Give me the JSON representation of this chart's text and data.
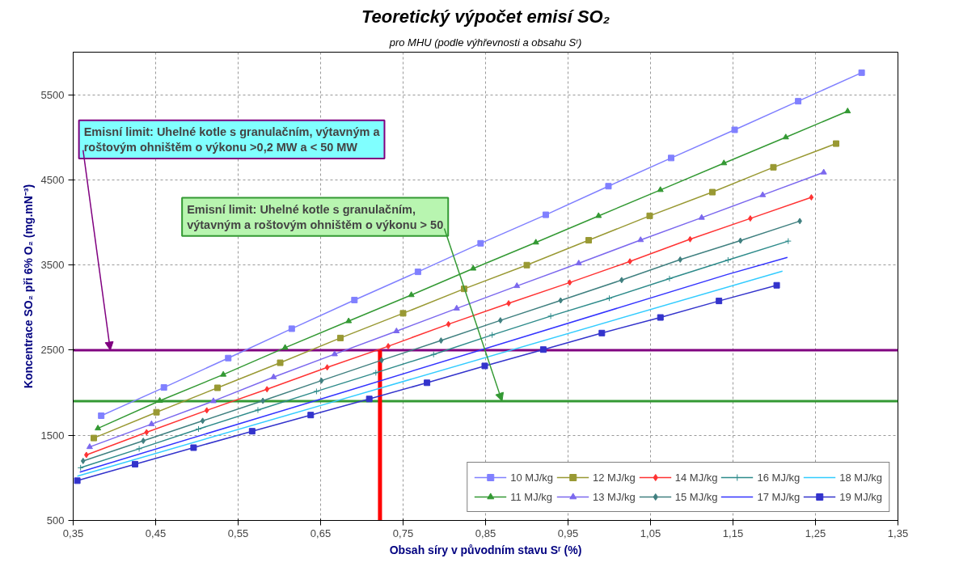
{
  "chart_data": {
    "type": "line",
    "title": "Teoretický výpočet emisí SO₂",
    "subtitle": "pro MHU (podle výhřevnosti a obsahu Sʳ)",
    "xlabel": "Obsah síry v původním stavu Sʳ (%)",
    "ylabel": "Koncentrace SO₂ při 6% O₂ (mg.mN⁻³)",
    "xlim": [
      0.35,
      1.35
    ],
    "ylim": [
      500,
      6000
    ],
    "xticks": [
      {
        "value": 0.35,
        "label": "0,35"
      },
      {
        "value": 0.45,
        "label": "0,45"
      },
      {
        "value": 0.55,
        "label": "0,55"
      },
      {
        "value": 0.65,
        "label": "0,65"
      },
      {
        "value": 0.75,
        "label": "0,75"
      },
      {
        "value": 0.85,
        "label": "0,85"
      },
      {
        "value": 0.95,
        "label": "0,95"
      },
      {
        "value": 1.05,
        "label": "1,05"
      },
      {
        "value": 1.15,
        "label": "1,15"
      },
      {
        "value": 1.25,
        "label": "1,25"
      },
      {
        "value": 1.35,
        "label": "1,35"
      }
    ],
    "yticks": [
      500,
      1500,
      2500,
      3500,
      4500,
      5500
    ],
    "grid": true,
    "legend": "bottom right",
    "line_style": "solid",
    "series": [
      {
        "name": "10 MJ/kg",
        "color": "#8080ff",
        "marker": "square",
        "x": [
          0.384,
          0.46,
          0.538,
          0.615,
          0.691,
          0.768,
          0.844,
          0.923,
          0.999,
          1.075,
          1.152,
          1.229,
          1.306
        ],
        "values": [
          1730,
          2062,
          2407,
          2752,
          3089,
          3420,
          3755,
          4090,
          4426,
          4757,
          5088,
          5424,
          5759
        ]
      },
      {
        "name": "11 MJ/kg",
        "color": "#339933",
        "marker": "triangle",
        "x": [
          0.38,
          0.455,
          0.532,
          0.607,
          0.684,
          0.76,
          0.835,
          0.911,
          0.987,
          1.062,
          1.139,
          1.214,
          1.289
        ],
        "values": [
          1582,
          1906,
          2213,
          2529,
          2841,
          3148,
          3459,
          3765,
          4077,
          4382,
          4696,
          5000,
          5306
        ]
      },
      {
        "name": "12 MJ/kg",
        "color": "#999933",
        "marker": "square",
        "x": [
          0.375,
          0.451,
          0.525,
          0.601,
          0.674,
          0.75,
          0.824,
          0.9,
          0.975,
          1.049,
          1.125,
          1.199,
          1.275
        ],
        "values": [
          1468,
          1771,
          2058,
          2352,
          2643,
          2933,
          3220,
          3499,
          3791,
          4078,
          4356,
          4648,
          4926
        ]
      },
      {
        "name": "13 MJ/kg",
        "color": "#7b68ee",
        "marker": "triangle",
        "x": [
          0.37,
          0.445,
          0.52,
          0.593,
          0.667,
          0.742,
          0.815,
          0.888,
          0.963,
          1.038,
          1.112,
          1.186,
          1.26
        ],
        "values": [
          1363,
          1632,
          1902,
          2184,
          2453,
          2723,
          2990,
          3254,
          3520,
          3794,
          4056,
          4322,
          4588
        ]
      },
      {
        "name": "14 MJ/kg",
        "color": "#ff3333",
        "marker": "diamond",
        "x": [
          0.366,
          0.439,
          0.512,
          0.585,
          0.658,
          0.732,
          0.805,
          0.878,
          0.952,
          1.025,
          1.098,
          1.171,
          1.245
        ],
        "values": [
          1270,
          1536,
          1793,
          2041,
          2298,
          2546,
          2805,
          3050,
          3294,
          3542,
          3803,
          4047,
          4295
        ]
      },
      {
        "name": "15 MJ/kg",
        "color": "#408080",
        "marker": "diamond",
        "x": [
          0.362,
          0.435,
          0.507,
          0.58,
          0.651,
          0.724,
          0.796,
          0.868,
          0.941,
          1.015,
          1.086,
          1.159,
          1.231
        ],
        "values": [
          1199,
          1435,
          1670,
          1906,
          2142,
          2382,
          2613,
          2850,
          3084,
          3323,
          3564,
          3786,
          4016
        ]
      },
      {
        "name": "16 MJ/kg",
        "color": "#2e8b8b",
        "marker": "cross",
        "x": [
          0.359,
          0.43,
          0.502,
          0.574,
          0.645,
          0.717,
          0.787,
          0.858,
          0.929,
          1.0,
          1.073,
          1.144,
          1.217
        ],
        "values": [
          1119,
          1342,
          1574,
          1797,
          2016,
          2235,
          2450,
          2679,
          2900,
          3110,
          3341,
          3559,
          3781
        ]
      },
      {
        "name": "17 MJ/kg",
        "color": "#3333ff",
        "marker": "none",
        "x": [
          0.358,
          0.65,
          1.143,
          1.216
        ],
        "values": [
          1068,
          1925,
          3389,
          3589
        ]
      },
      {
        "name": "18 MJ/kg",
        "color": "#33ccff",
        "marker": "none",
        "x": [
          0.355,
          0.65,
          1.21
        ],
        "values": [
          1020,
          1850,
          3428
        ]
      },
      {
        "name": "19 MJ/kg",
        "color": "#3333cc",
        "marker": "square",
        "x": [
          0.355,
          0.425,
          0.496,
          0.567,
          0.638,
          0.709,
          0.779,
          0.849,
          0.92,
          0.991,
          1.062,
          1.133,
          1.203
        ],
        "values": [
          967,
          1161,
          1355,
          1548,
          1738,
          1927,
          2117,
          2315,
          2507,
          2701,
          2884,
          3078,
          3262
        ]
      }
    ],
    "ref_lines": [
      {
        "axis": "y",
        "value": 2500,
        "color": "#800080"
      },
      {
        "axis": "y",
        "value": 1900,
        "color": "#339933"
      },
      {
        "axis": "x",
        "value": 0.722,
        "color": "#ff0000"
      }
    ],
    "annotations": [
      {
        "text": "Emisní limit: Uhelné kotle s granulačním, výtavným a\nroštovým ohništěm o výkonu >0,2 MW a < 50 MW",
        "x": 0.395,
        "y": 2500
      },
      {
        "text": "Emisní limit: Uhelné kotle s granulačním,\nvýtavným a roštovým ohništěm o výkonu > 50",
        "x": 0.87,
        "y": 1900
      }
    ]
  }
}
